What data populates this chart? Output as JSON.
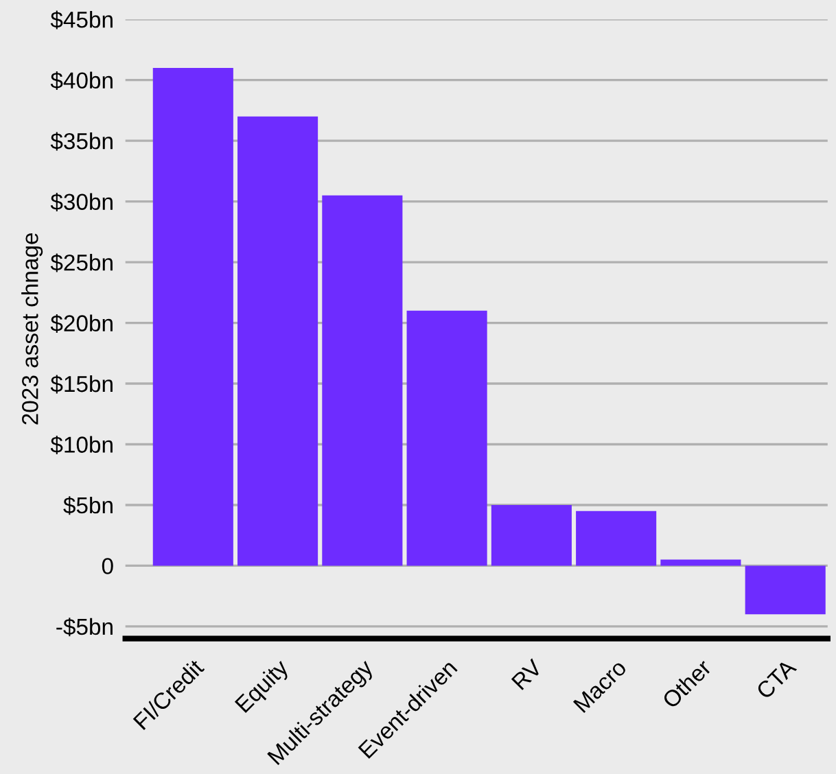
{
  "chart_data": {
    "type": "bar",
    "ylabel": "2023 asset chnage",
    "categories": [
      "FI/Credit",
      "Equity",
      "Multi-strategy",
      "Event-driven",
      "RV",
      "Macro",
      "Other",
      "CTA"
    ],
    "values": [
      41,
      37,
      30.5,
      21,
      5,
      4.5,
      0.5,
      -4
    ],
    "color": "#6e2cff",
    "ylim": [
      -6,
      45
    ],
    "yticks": [
      {
        "value": -5,
        "label": "-$5bn"
      },
      0,
      {
        "value": 5,
        "label": "$5bn"
      },
      {
        "value": 10,
        "label": "$10bn"
      },
      {
        "value": 15,
        "label": "$15bn"
      },
      {
        "value": 20,
        "label": "$20bn"
      },
      {
        "value": 25,
        "label": "$25bn"
      },
      {
        "value": 30,
        "label": "$30bn"
      },
      {
        "value": 35,
        "label": "$35bn"
      },
      {
        "value": 40,
        "label": "$40bn"
      },
      {
        "value": 45,
        "label": "$45bn"
      }
    ],
    "grid": "y"
  }
}
